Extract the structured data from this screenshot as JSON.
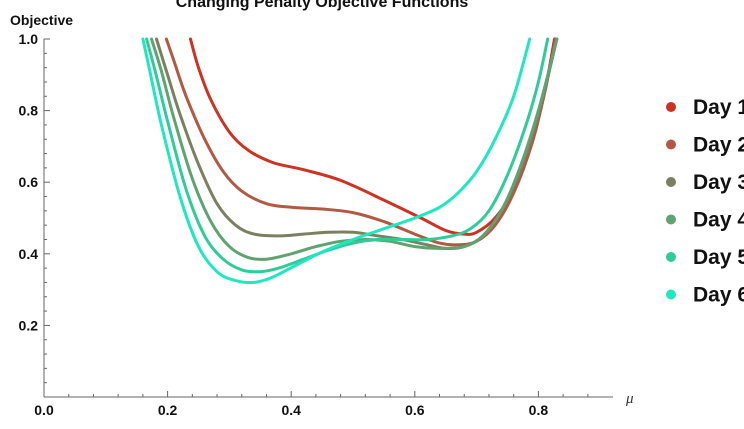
{
  "chart_data": {
    "type": "line",
    "title": "Changing Penalty Objective Functions",
    "ylabel": "Objective",
    "xlabel": "μ",
    "xlim": [
      0.0,
      0.92
    ],
    "ylim": [
      0.0,
      1.0
    ],
    "xticks": [
      "0.0",
      "0.2",
      "0.4",
      "0.6",
      "0.8"
    ],
    "yticks": [
      "0.2",
      "0.4",
      "0.6",
      "0.8",
      "1.0"
    ],
    "legend_position": "right",
    "grid": false,
    "series": [
      {
        "name": "Day 1",
        "color": "#cc3322",
        "points": [
          [
            0.237,
            1.0
          ],
          [
            0.25,
            0.92
          ],
          [
            0.27,
            0.83
          ],
          [
            0.3,
            0.74
          ],
          [
            0.33,
            0.69
          ],
          [
            0.37,
            0.655
          ],
          [
            0.42,
            0.635
          ],
          [
            0.48,
            0.605
          ],
          [
            0.55,
            0.55
          ],
          [
            0.61,
            0.5
          ],
          [
            0.65,
            0.465
          ],
          [
            0.68,
            0.455
          ],
          [
            0.7,
            0.46
          ],
          [
            0.73,
            0.5
          ],
          [
            0.76,
            0.58
          ],
          [
            0.79,
            0.72
          ],
          [
            0.81,
            0.85
          ],
          [
            0.826,
            1.0
          ]
        ]
      },
      {
        "name": "Day 2",
        "color": "#b05a44",
        "points": [
          [
            0.198,
            1.0
          ],
          [
            0.21,
            0.94
          ],
          [
            0.23,
            0.84
          ],
          [
            0.26,
            0.72
          ],
          [
            0.29,
            0.63
          ],
          [
            0.32,
            0.575
          ],
          [
            0.36,
            0.54
          ],
          [
            0.4,
            0.53
          ],
          [
            0.45,
            0.525
          ],
          [
            0.5,
            0.515
          ],
          [
            0.55,
            0.49
          ],
          [
            0.6,
            0.455
          ],
          [
            0.64,
            0.43
          ],
          [
            0.67,
            0.425
          ],
          [
            0.7,
            0.435
          ],
          [
            0.73,
            0.48
          ],
          [
            0.76,
            0.57
          ],
          [
            0.79,
            0.71
          ],
          [
            0.81,
            0.85
          ],
          [
            0.828,
            1.0
          ]
        ]
      },
      {
        "name": "Day 3",
        "color": "#7a8060",
        "points": [
          [
            0.182,
            1.0
          ],
          [
            0.2,
            0.9
          ],
          [
            0.22,
            0.79
          ],
          [
            0.25,
            0.65
          ],
          [
            0.28,
            0.54
          ],
          [
            0.31,
            0.48
          ],
          [
            0.34,
            0.455
          ],
          [
            0.38,
            0.45
          ],
          [
            0.42,
            0.455
          ],
          [
            0.46,
            0.46
          ],
          [
            0.5,
            0.46
          ],
          [
            0.54,
            0.45
          ],
          [
            0.58,
            0.44
          ],
          [
            0.62,
            0.425
          ],
          [
            0.65,
            0.415
          ],
          [
            0.68,
            0.42
          ],
          [
            0.71,
            0.45
          ],
          [
            0.74,
            0.52
          ],
          [
            0.77,
            0.63
          ],
          [
            0.8,
            0.79
          ],
          [
            0.83,
            1.0
          ]
        ]
      },
      {
        "name": "Day 4",
        "color": "#5ea370",
        "points": [
          [
            0.174,
            1.0
          ],
          [
            0.19,
            0.91
          ],
          [
            0.21,
            0.78
          ],
          [
            0.24,
            0.61
          ],
          [
            0.27,
            0.49
          ],
          [
            0.3,
            0.42
          ],
          [
            0.33,
            0.39
          ],
          [
            0.36,
            0.385
          ],
          [
            0.4,
            0.4
          ],
          [
            0.44,
            0.42
          ],
          [
            0.48,
            0.435
          ],
          [
            0.52,
            0.44
          ],
          [
            0.56,
            0.435
          ],
          [
            0.6,
            0.42
          ],
          [
            0.64,
            0.415
          ],
          [
            0.68,
            0.42
          ],
          [
            0.71,
            0.45
          ],
          [
            0.74,
            0.52
          ],
          [
            0.77,
            0.64
          ],
          [
            0.8,
            0.8
          ],
          [
            0.83,
            1.0
          ]
        ]
      },
      {
        "name": "Day 5",
        "color": "#2fcc98",
        "points": [
          [
            0.166,
            1.0
          ],
          [
            0.18,
            0.91
          ],
          [
            0.2,
            0.77
          ],
          [
            0.23,
            0.58
          ],
          [
            0.26,
            0.45
          ],
          [
            0.29,
            0.385
          ],
          [
            0.32,
            0.355
          ],
          [
            0.35,
            0.35
          ],
          [
            0.38,
            0.36
          ],
          [
            0.42,
            0.385
          ],
          [
            0.46,
            0.41
          ],
          [
            0.5,
            0.43
          ],
          [
            0.54,
            0.44
          ],
          [
            0.58,
            0.44
          ],
          [
            0.62,
            0.44
          ],
          [
            0.66,
            0.45
          ],
          [
            0.69,
            0.47
          ],
          [
            0.72,
            0.52
          ],
          [
            0.75,
            0.62
          ],
          [
            0.78,
            0.76
          ],
          [
            0.8,
            0.88
          ],
          [
            0.815,
            1.0
          ]
        ]
      },
      {
        "name": "Day 6",
        "color": "#1ee8c0",
        "points": [
          [
            0.16,
            1.0
          ],
          [
            0.17,
            0.92
          ],
          [
            0.19,
            0.76
          ],
          [
            0.22,
            0.56
          ],
          [
            0.25,
            0.42
          ],
          [
            0.28,
            0.35
          ],
          [
            0.31,
            0.325
          ],
          [
            0.34,
            0.32
          ],
          [
            0.37,
            0.335
          ],
          [
            0.41,
            0.37
          ],
          [
            0.45,
            0.405
          ],
          [
            0.5,
            0.44
          ],
          [
            0.55,
            0.47
          ],
          [
            0.6,
            0.5
          ],
          [
            0.64,
            0.53
          ],
          [
            0.67,
            0.57
          ],
          [
            0.7,
            0.63
          ],
          [
            0.73,
            0.72
          ],
          [
            0.76,
            0.84
          ],
          [
            0.786,
            1.0
          ]
        ]
      }
    ]
  }
}
